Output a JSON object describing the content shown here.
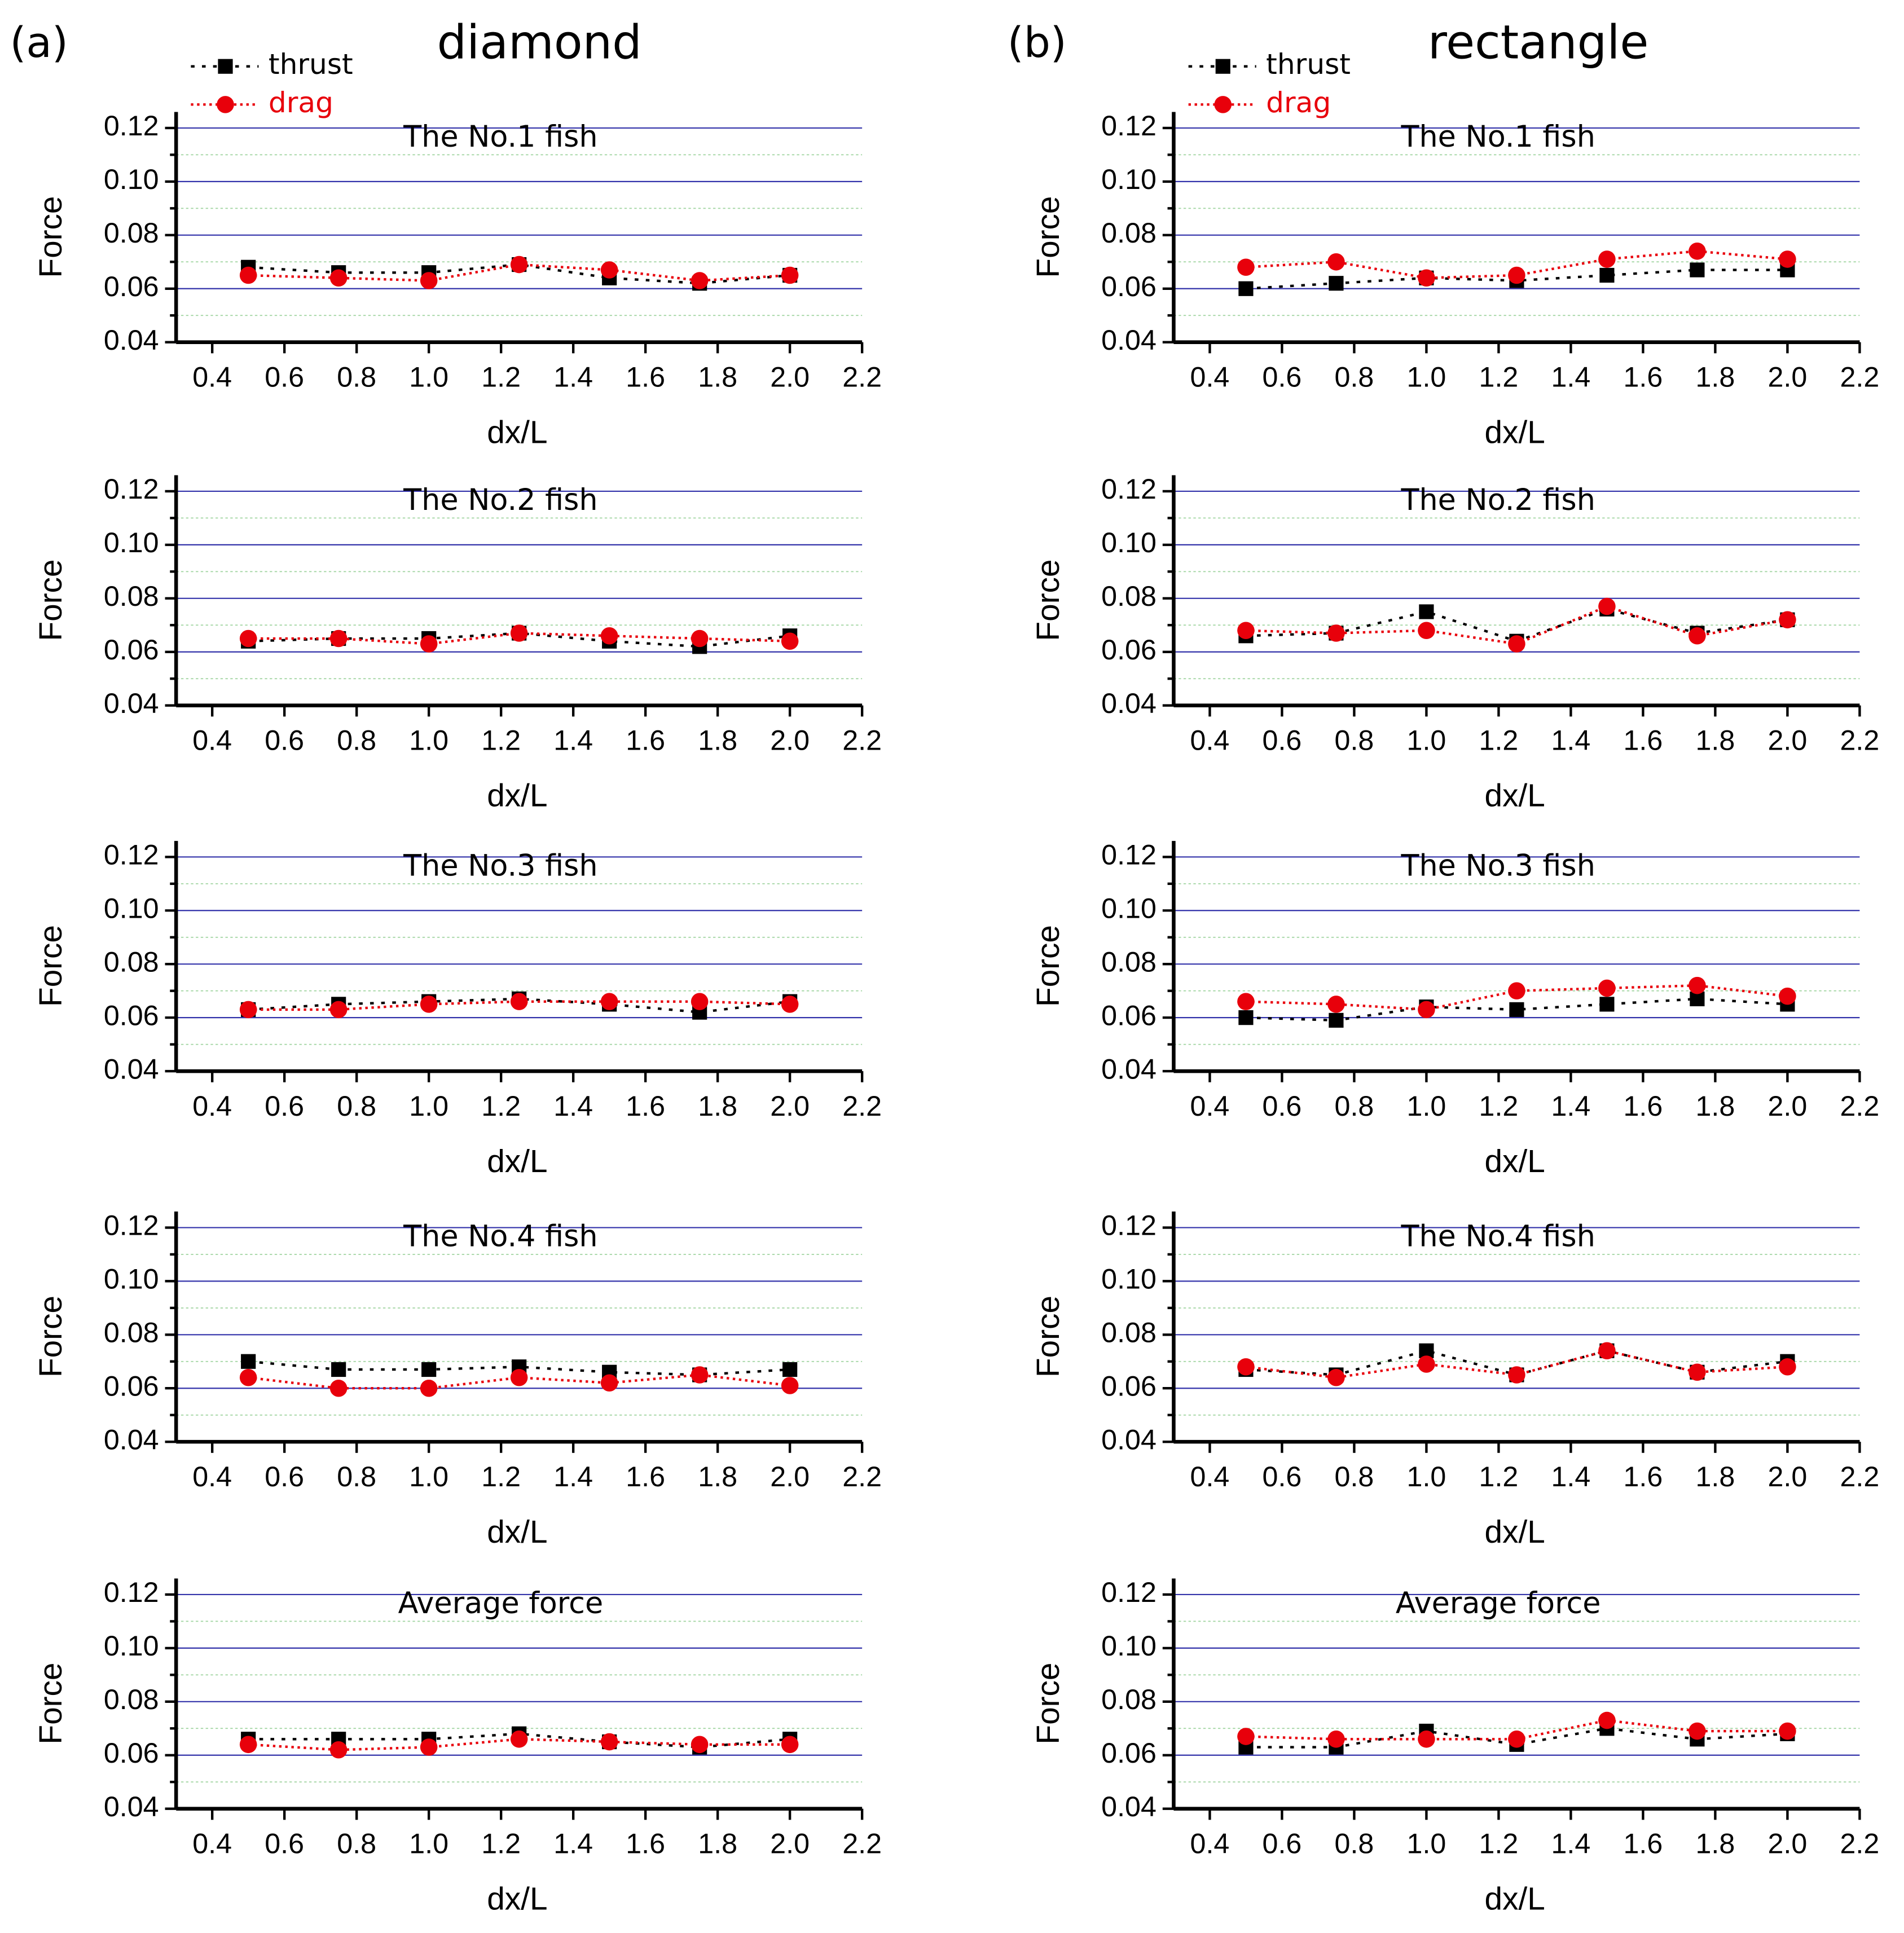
{
  "panels": [
    {
      "label": "(a)",
      "title": "diamond"
    },
    {
      "label": "(b)",
      "title": "rectangle"
    }
  ],
  "chart_data": [
    {
      "type": "line",
      "annotation": "The No.1 fish",
      "xlabel": "dx/L",
      "ylabel": "Force",
      "legend": "top-left",
      "x": [
        0.5,
        0.75,
        1.0,
        1.25,
        1.5,
        1.75,
        2.0
      ],
      "xlim": [
        0.3,
        2.2
      ],
      "xticks": [
        0.4,
        0.6,
        0.8,
        {
          "value": 1,
          "label": "1.0"
        },
        1.2,
        1.4,
        1.6,
        1.8,
        {
          "value": 2,
          "label": "2.0"
        },
        2.2
      ],
      "ylim": [
        0.04,
        0.126
      ],
      "yticks": [
        0.04,
        0.06,
        0.08,
        {
          "value": 0.1,
          "label": "0.10"
        },
        0.12
      ],
      "minor_yticks": [
        0.05,
        0.07,
        0.09,
        0.11
      ],
      "grid": true,
      "series": [
        {
          "name": "thrust",
          "color": "#000000",
          "marker": "square",
          "values": [
            0.068,
            0.066,
            0.066,
            0.069,
            0.064,
            0.062,
            0.065
          ]
        },
        {
          "name": "drag",
          "color": "#e8000b",
          "marker": "circle",
          "values": [
            0.065,
            0.064,
            0.063,
            0.069,
            0.067,
            0.063,
            0.065
          ]
        }
      ]
    },
    {
      "type": "line",
      "annotation": "The No.2 fish",
      "xlabel": "dx/L",
      "ylabel": "Force",
      "x": [
        0.5,
        0.75,
        1.0,
        1.25,
        1.5,
        1.75,
        2.0
      ],
      "xlim": [
        0.3,
        2.2
      ],
      "xticks": [
        0.4,
        0.6,
        0.8,
        {
          "value": 1,
          "label": "1.0"
        },
        1.2,
        1.4,
        1.6,
        1.8,
        {
          "value": 2,
          "label": "2.0"
        },
        2.2
      ],
      "ylim": [
        0.04,
        0.126
      ],
      "yticks": [
        0.04,
        0.06,
        0.08,
        {
          "value": 0.1,
          "label": "0.10"
        },
        0.12
      ],
      "minor_yticks": [
        0.05,
        0.07,
        0.09,
        0.11
      ],
      "grid": true,
      "series": [
        {
          "color": "#000000",
          "marker": "square",
          "values": [
            0.064,
            0.065,
            0.065,
            0.067,
            0.064,
            0.062,
            0.066
          ]
        },
        {
          "color": "#e8000b",
          "marker": "circle",
          "values": [
            0.065,
            0.065,
            0.063,
            0.067,
            0.066,
            0.065,
            0.064
          ]
        }
      ]
    },
    {
      "type": "line",
      "annotation": "The No.3 fish",
      "xlabel": "dx/L",
      "ylabel": "Force",
      "x": [
        0.5,
        0.75,
        1.0,
        1.25,
        1.5,
        1.75,
        2.0
      ],
      "xlim": [
        0.3,
        2.2
      ],
      "xticks": [
        0.4,
        0.6,
        0.8,
        {
          "value": 1,
          "label": "1.0"
        },
        1.2,
        1.4,
        1.6,
        1.8,
        {
          "value": 2,
          "label": "2.0"
        },
        2.2
      ],
      "ylim": [
        0.04,
        0.126
      ],
      "yticks": [
        0.04,
        0.06,
        0.08,
        {
          "value": 0.1,
          "label": "0.10"
        },
        0.12
      ],
      "minor_yticks": [
        0.05,
        0.07,
        0.09,
        0.11
      ],
      "grid": true,
      "series": [
        {
          "color": "#000000",
          "marker": "square",
          "values": [
            0.063,
            0.065,
            0.066,
            0.067,
            0.065,
            0.062,
            0.066
          ]
        },
        {
          "color": "#e8000b",
          "marker": "circle",
          "values": [
            0.063,
            0.063,
            0.065,
            0.066,
            0.066,
            0.066,
            0.065
          ]
        }
      ]
    },
    {
      "type": "line",
      "annotation": "The No.4 fish",
      "xlabel": "dx/L",
      "ylabel": "Force",
      "x": [
        0.5,
        0.75,
        1.0,
        1.25,
        1.5,
        1.75,
        2.0
      ],
      "xlim": [
        0.3,
        2.2
      ],
      "xticks": [
        0.4,
        0.6,
        0.8,
        {
          "value": 1,
          "label": "1.0"
        },
        1.2,
        1.4,
        1.6,
        1.8,
        {
          "value": 2,
          "label": "2.0"
        },
        2.2
      ],
      "ylim": [
        0.04,
        0.126
      ],
      "yticks": [
        0.04,
        0.06,
        0.08,
        {
          "value": 0.1,
          "label": "0.10"
        },
        0.12
      ],
      "minor_yticks": [
        0.05,
        0.07,
        0.09,
        0.11
      ],
      "grid": true,
      "series": [
        {
          "color": "#000000",
          "marker": "square",
          "values": [
            0.07,
            0.067,
            0.067,
            0.068,
            0.066,
            0.065,
            0.067
          ]
        },
        {
          "color": "#e8000b",
          "marker": "circle",
          "values": [
            0.064,
            0.06,
            0.06,
            0.064,
            0.062,
            0.065,
            0.061
          ]
        }
      ]
    },
    {
      "type": "line",
      "annotation": "Average force",
      "xlabel": "dx/L",
      "ylabel": "Force",
      "x": [
        0.5,
        0.75,
        1.0,
        1.25,
        1.5,
        1.75,
        2.0
      ],
      "xlim": [
        0.3,
        2.2
      ],
      "xticks": [
        0.4,
        0.6,
        0.8,
        {
          "value": 1,
          "label": "1.0"
        },
        1.2,
        1.4,
        1.6,
        1.8,
        {
          "value": 2,
          "label": "2.0"
        },
        2.2
      ],
      "ylim": [
        0.04,
        0.126
      ],
      "yticks": [
        0.04,
        0.06,
        0.08,
        {
          "value": 0.1,
          "label": "0.10"
        },
        0.12
      ],
      "minor_yticks": [
        0.05,
        0.07,
        0.09,
        0.11
      ],
      "grid": true,
      "series": [
        {
          "color": "#000000",
          "marker": "square",
          "values": [
            0.066,
            0.066,
            0.066,
            0.068,
            0.065,
            0.063,
            0.066
          ]
        },
        {
          "color": "#e8000b",
          "marker": "circle",
          "values": [
            0.064,
            0.062,
            0.063,
            0.066,
            0.065,
            0.064,
            0.064
          ]
        }
      ]
    },
    {
      "type": "line",
      "annotation": "The No.1 fish",
      "xlabel": "dx/L",
      "ylabel": "Force",
      "legend": "top-left",
      "x": [
        0.5,
        0.75,
        1.0,
        1.25,
        1.5,
        1.75,
        2.0
      ],
      "xlim": [
        0.3,
        2.2
      ],
      "xticks": [
        0.4,
        0.6,
        0.8,
        {
          "value": 1,
          "label": "1.0"
        },
        1.2,
        1.4,
        1.6,
        1.8,
        {
          "value": 2,
          "label": "2.0"
        },
        2.2
      ],
      "ylim": [
        0.04,
        0.126
      ],
      "yticks": [
        0.04,
        0.06,
        0.08,
        {
          "value": 0.1,
          "label": "0.10"
        },
        0.12
      ],
      "minor_yticks": [
        0.05,
        0.07,
        0.09,
        0.11
      ],
      "grid": true,
      "series": [
        {
          "name": "thrust",
          "color": "#000000",
          "marker": "square",
          "values": [
            0.06,
            0.062,
            0.064,
            0.063,
            0.065,
            0.067,
            0.067
          ]
        },
        {
          "name": "drag",
          "color": "#e8000b",
          "marker": "circle",
          "values": [
            0.068,
            0.07,
            0.064,
            0.065,
            0.071,
            0.074,
            0.071
          ]
        }
      ]
    },
    {
      "type": "line",
      "annotation": "The No.2 fish",
      "xlabel": "dx/L",
      "ylabel": "Force",
      "x": [
        0.5,
        0.75,
        1.0,
        1.25,
        1.5,
        1.75,
        2.0
      ],
      "xlim": [
        0.3,
        2.2
      ],
      "xticks": [
        0.4,
        0.6,
        0.8,
        {
          "value": 1,
          "label": "1.0"
        },
        1.2,
        1.4,
        1.6,
        1.8,
        {
          "value": 2,
          "label": "2.0"
        },
        2.2
      ],
      "ylim": [
        0.04,
        0.126
      ],
      "yticks": [
        0.04,
        0.06,
        0.08,
        {
          "value": 0.1,
          "label": "0.10"
        },
        0.12
      ],
      "minor_yticks": [
        0.05,
        0.07,
        0.09,
        0.11
      ],
      "grid": true,
      "series": [
        {
          "color": "#000000",
          "marker": "square",
          "values": [
            0.066,
            0.067,
            0.075,
            0.064,
            0.076,
            0.067,
            0.072
          ]
        },
        {
          "color": "#e8000b",
          "marker": "circle",
          "values": [
            0.068,
            0.067,
            0.068,
            0.063,
            0.077,
            0.066,
            0.072
          ]
        }
      ]
    },
    {
      "type": "line",
      "annotation": "The No.3 fish",
      "xlabel": "dx/L",
      "ylabel": "Force",
      "x": [
        0.5,
        0.75,
        1.0,
        1.25,
        1.5,
        1.75,
        2.0
      ],
      "xlim": [
        0.3,
        2.2
      ],
      "xticks": [
        0.4,
        0.6,
        0.8,
        {
          "value": 1,
          "label": "1.0"
        },
        1.2,
        1.4,
        1.6,
        1.8,
        {
          "value": 2,
          "label": "2.0"
        },
        2.2
      ],
      "ylim": [
        0.04,
        0.126
      ],
      "yticks": [
        0.04,
        0.06,
        0.08,
        {
          "value": 0.1,
          "label": "0.10"
        },
        0.12
      ],
      "minor_yticks": [
        0.05,
        0.07,
        0.09,
        0.11
      ],
      "grid": true,
      "series": [
        {
          "color": "#000000",
          "marker": "square",
          "values": [
            0.06,
            0.059,
            0.064,
            0.063,
            0.065,
            0.067,
            0.065
          ]
        },
        {
          "color": "#e8000b",
          "marker": "circle",
          "values": [
            0.066,
            0.065,
            0.063,
            0.07,
            0.071,
            0.072,
            0.068
          ]
        }
      ]
    },
    {
      "type": "line",
      "annotation": "The No.4 fish",
      "xlabel": "dx/L",
      "ylabel": "Force",
      "x": [
        0.5,
        0.75,
        1.0,
        1.25,
        1.5,
        1.75,
        2.0
      ],
      "xlim": [
        0.3,
        2.2
      ],
      "xticks": [
        0.4,
        0.6,
        0.8,
        {
          "value": 1,
          "label": "1.0"
        },
        1.2,
        1.4,
        1.6,
        1.8,
        {
          "value": 2,
          "label": "2.0"
        },
        2.2
      ],
      "ylim": [
        0.04,
        0.126
      ],
      "yticks": [
        0.04,
        0.06,
        0.08,
        {
          "value": 0.1,
          "label": "0.10"
        },
        0.12
      ],
      "minor_yticks": [
        0.05,
        0.07,
        0.09,
        0.11
      ],
      "grid": true,
      "series": [
        {
          "color": "#000000",
          "marker": "square",
          "values": [
            0.067,
            0.065,
            0.074,
            0.065,
            0.074,
            0.066,
            0.07
          ]
        },
        {
          "color": "#e8000b",
          "marker": "circle",
          "values": [
            0.068,
            0.064,
            0.069,
            0.065,
            0.074,
            0.066,
            0.068
          ]
        }
      ]
    },
    {
      "type": "line",
      "annotation": "Average force",
      "xlabel": "dx/L",
      "ylabel": "Force",
      "x": [
        0.5,
        0.75,
        1.0,
        1.25,
        1.5,
        1.75,
        2.0
      ],
      "xlim": [
        0.3,
        2.2
      ],
      "xticks": [
        0.4,
        0.6,
        0.8,
        {
          "value": 1,
          "label": "1.0"
        },
        1.2,
        1.4,
        1.6,
        1.8,
        {
          "value": 2,
          "label": "2.0"
        },
        2.2
      ],
      "ylim": [
        0.04,
        0.126
      ],
      "yticks": [
        0.04,
        0.06,
        0.08,
        {
          "value": 0.1,
          "label": "0.10"
        },
        0.12
      ],
      "minor_yticks": [
        0.05,
        0.07,
        0.09,
        0.11
      ],
      "grid": true,
      "series": [
        {
          "color": "#000000",
          "marker": "square",
          "values": [
            0.063,
            0.063,
            0.069,
            0.064,
            0.07,
            0.066,
            0.068
          ]
        },
        {
          "color": "#e8000b",
          "marker": "circle",
          "values": [
            0.067,
            0.066,
            0.066,
            0.066,
            0.073,
            0.069,
            0.069
          ]
        }
      ]
    }
  ]
}
